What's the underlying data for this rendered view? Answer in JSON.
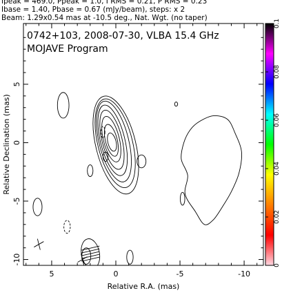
{
  "header": {
    "line1": "Ipeak = 469.0, Ppeak = 1.0, I RMS = 0.21, P RMS = 0.23",
    "line2": "Ibase = 1.40, Pbase = 0.67 (mJy/beam), steps: x 2",
    "line3": "Beam: 1.29x0.54 mas at -10.5 deg., Nat. Wgt. (no taper)"
  },
  "plot": {
    "title1": "0742+103, 2008-07-30, VLBA 15.4 GHz",
    "title2": "MOJAVE Program"
  },
  "chart_data": {
    "type": "contour",
    "xlabel": "Relative R.A. (mas)",
    "ylabel": "Relative Declination (mas)",
    "xlim": [
      7.2,
      -11.5
    ],
    "ylim": [
      -10.5,
      10.2
    ],
    "x_ticks": [
      5,
      0,
      -5,
      -10
    ],
    "x_tick_labels": [
      "5",
      "0",
      "-5",
      "-10"
    ],
    "y_ticks": [
      5,
      0,
      -5,
      -10
    ],
    "y_tick_labels": [
      "5",
      "0",
      "-5",
      "-10"
    ],
    "colorbar": {
      "range": [
        0,
        0.1
      ],
      "ticks": [
        0,
        0.02,
        0.04,
        0.06,
        0.08,
        0.1
      ],
      "tick_labels": [
        "0",
        "0.02",
        "0.04",
        "0.06",
        "0.08",
        "0.1"
      ],
      "colors": [
        "#ffd7e1",
        "#ff0000",
        "#ff8000",
        "#ffff00",
        "#00ff00",
        "#00ffff",
        "#0000ff",
        "#ff00ff",
        "#000000"
      ]
    },
    "core_levels": [
      {
        "level": 1,
        "cx": 0.0,
        "cy": -0.2,
        "rx": 1.55,
        "ry": 4.3
      },
      {
        "level": 2,
        "cx": 0.05,
        "cy": -0.05,
        "rx": 1.35,
        "ry": 3.9
      },
      {
        "level": 3,
        "cx": 0.15,
        "cy": 0.1,
        "rx": 1.15,
        "ry": 3.55
      },
      {
        "level": 4,
        "cx": 0.25,
        "cy": 0.2,
        "rx": 0.95,
        "ry": 3.1
      },
      {
        "level": 5,
        "cx": 0.3,
        "cy": 0.25,
        "rx": 0.78,
        "ry": 2.6
      },
      {
        "level": 6,
        "cx": 0.35,
        "cy": 0.3,
        "rx": 0.62,
        "ry": 2.0
      },
      {
        "level": 7,
        "cx": 0.35,
        "cy": 0.2,
        "rx": 0.46,
        "ry": 1.4
      },
      {
        "level": 8,
        "cx": 0.3,
        "cy": 0.05,
        "rx": 0.32,
        "ry": 0.8
      }
    ],
    "islands": [
      {
        "cx": 4.1,
        "cy": 3.2,
        "rx": 0.45,
        "ry": 1.1,
        "dashed": false
      },
      {
        "cx": 2.0,
        "cy": -2.4,
        "rx": 0.22,
        "ry": 0.5,
        "dashed": false
      },
      {
        "cx": -2.0,
        "cy": -1.6,
        "rx": 0.35,
        "ry": 0.55,
        "dashed": false
      },
      {
        "cx": 0.8,
        "cy": -1.2,
        "rx": 0.2,
        "ry": 0.4,
        "dashed": false
      },
      {
        "cx": -4.7,
        "cy": 3.3,
        "rx": 0.12,
        "ry": 0.18,
        "dashed": false
      },
      {
        "cx": -5.2,
        "cy": -4.8,
        "rx": 0.18,
        "ry": 0.55,
        "dashed": false
      },
      {
        "cx": 6.1,
        "cy": -5.5,
        "rx": 0.35,
        "ry": 0.75,
        "dashed": false
      },
      {
        "cx": 3.8,
        "cy": -7.2,
        "rx": 0.25,
        "ry": 0.55,
        "dashed": true
      },
      {
        "cx": 2.3,
        "cy": -9.7,
        "rx": 0.35,
        "ry": 0.7,
        "dashed": false
      },
      {
        "cx": -1.1,
        "cy": -9.8,
        "rx": 0.25,
        "ry": 0.6,
        "dashed": false
      },
      {
        "cx": 1.0,
        "cy": 0.9,
        "rx": 0.15,
        "ry": 0.5,
        "dashed": true
      }
    ],
    "extended_feature": [
      [
        -6.5,
        1.8
      ],
      [
        -7.6,
        2.3
      ],
      [
        -8.7,
        2.0
      ],
      [
        -9.3,
        0.8
      ],
      [
        -9.8,
        -0.8
      ],
      [
        -9.6,
        -2.6
      ],
      [
        -9.0,
        -4.2
      ],
      [
        -8.3,
        -5.5
      ],
      [
        -7.6,
        -6.6
      ],
      [
        -6.9,
        -7.0
      ],
      [
        -6.2,
        -5.9
      ],
      [
        -5.4,
        -4.4
      ],
      [
        -5.6,
        -2.8
      ],
      [
        -5.1,
        -1.4
      ],
      [
        -5.3,
        0.0
      ],
      [
        -5.8,
        1.1
      ]
    ],
    "beam": {
      "major_mas": 1.29,
      "minor_mas": 0.54,
      "pa_deg": -10.5
    },
    "crosses": [
      {
        "x": 6.0,
        "y": -8.7
      },
      {
        "x": 2.6,
        "y": -10.0
      }
    ]
  }
}
